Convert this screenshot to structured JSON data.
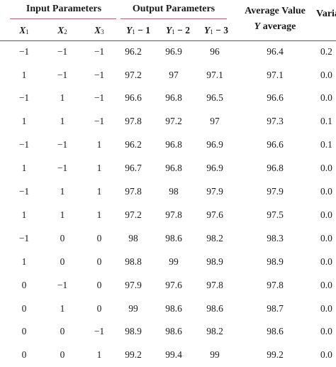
{
  "header": {
    "group1": "Input Parameters",
    "group2": "Output Parameters",
    "avg_line1": "Average Value",
    "avg_line2_var": "Y",
    "avg_line2_rest": " average",
    "variance_partial": "Varia"
  },
  "subheaders": {
    "x1": {
      "var": "X",
      "sub": "1"
    },
    "x2": {
      "var": "X",
      "sub": "2"
    },
    "x3": {
      "var": "X",
      "sub": "3"
    },
    "y11": {
      "var": "Y",
      "sub": "1",
      "rest": " − 1"
    },
    "y12": {
      "var": "Y",
      "sub": "1",
      "rest": " − 2"
    },
    "y13": {
      "var": "Y",
      "sub": "1",
      "rest": " − 3"
    }
  },
  "rows": [
    [
      "−1",
      "−1",
      "−1",
      "96.2",
      "96.9",
      "96",
      "96.4",
      "0.2"
    ],
    [
      "1",
      "−1",
      "−1",
      "97.2",
      "97",
      "97.1",
      "97.1",
      "0.0"
    ],
    [
      "−1",
      "1",
      "−1",
      "96.6",
      "96.8",
      "96.5",
      "96.6",
      "0.0"
    ],
    [
      "1",
      "1",
      "−1",
      "97.8",
      "97.2",
      "97",
      "97.3",
      "0.1"
    ],
    [
      "−1",
      "−1",
      "1",
      "96.2",
      "96.8",
      "96.9",
      "96.6",
      "0.1"
    ],
    [
      "1",
      "−1",
      "1",
      "96.7",
      "96.8",
      "96.9",
      "96.8",
      "0.0"
    ],
    [
      "−1",
      "1",
      "1",
      "97.8",
      "98",
      "97.9",
      "97.9",
      "0.0"
    ],
    [
      "1",
      "1",
      "1",
      "97.2",
      "97.8",
      "97.6",
      "97.5",
      "0.0"
    ],
    [
      "−1",
      "0",
      "0",
      "98",
      "98.6",
      "98.2",
      "98.3",
      "0.0"
    ],
    [
      "1",
      "0",
      "0",
      "98.8",
      "99",
      "98.9",
      "98.9",
      "0.0"
    ],
    [
      "0",
      "−1",
      "0",
      "97.9",
      "97.6",
      "97.8",
      "97.8",
      "0.0"
    ],
    [
      "0",
      "1",
      "0",
      "99",
      "98.6",
      "98.6",
      "98.7",
      "0.0"
    ],
    [
      "0",
      "0",
      "−1",
      "98.9",
      "98.6",
      "98.2",
      "98.6",
      "0.0"
    ],
    [
      "0",
      "0",
      "1",
      "99.2",
      "99.4",
      "99",
      "99.2",
      "0.0"
    ]
  ]
}
